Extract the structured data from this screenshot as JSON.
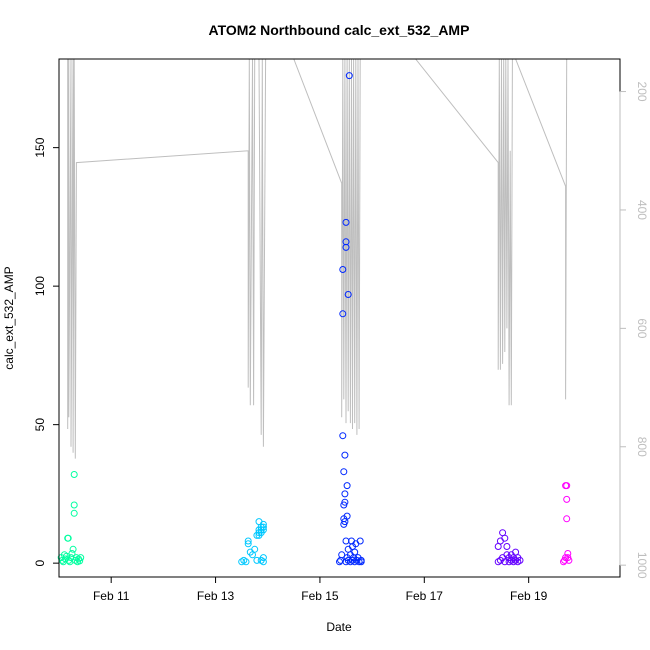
{
  "chart_data": {
    "type": "scatter",
    "title": "ATOM2 Northbound calc_ext_532_AMP",
    "xlabel": "Date",
    "ylabel": "calc_ext_532_AMP",
    "x_range": [
      "2024-02-10T00:00",
      "2024-02-20T18:00"
    ],
    "ylim": [
      -5,
      182
    ],
    "x_ticks": [
      {
        "label": "Feb 11",
        "x": "2024-02-11"
      },
      {
        "label": "Feb 13",
        "x": "2024-02-13"
      },
      {
        "label": "Feb 15",
        "x": "2024-02-15"
      },
      {
        "label": "Feb 17",
        "x": "2024-02-17"
      },
      {
        "label": "Feb 19",
        "x": "2024-02-19"
      }
    ],
    "y_ticks": [
      0,
      50,
      100,
      150
    ],
    "secondary_axis": {
      "side": "right",
      "reversed": true,
      "range": [
        145,
        1020
      ],
      "ticks": [
        200,
        400,
        600,
        800,
        1000
      ],
      "color": "#bebebe"
    },
    "grid": false,
    "point_shape": "open-circle",
    "series": [
      {
        "color": "#00FFA0",
        "points": [
          [
            "2024-02-10T01:00",
            2
          ],
          [
            "2024-02-10T01:30",
            1
          ],
          [
            "2024-02-10T02:00",
            0.5
          ],
          [
            "2024-02-10T02:30",
            3
          ],
          [
            "2024-02-10T03:00",
            1.5
          ],
          [
            "2024-02-10T03:30",
            2.5
          ],
          [
            "2024-02-10T04:00",
            9
          ],
          [
            "2024-02-10T04:15",
            9
          ],
          [
            "2024-02-10T04:30",
            1
          ],
          [
            "2024-02-10T05:00",
            0.5
          ],
          [
            "2024-02-10T05:30",
            2
          ],
          [
            "2024-02-10T06:00",
            3.5
          ],
          [
            "2024-02-10T06:30",
            5
          ],
          [
            "2024-02-10T07:00",
            32
          ],
          [
            "2024-02-10T07:00",
            21
          ],
          [
            "2024-02-10T07:00",
            18
          ],
          [
            "2024-02-10T07:30",
            1
          ],
          [
            "2024-02-10T08:00",
            2
          ],
          [
            "2024-02-10T08:30",
            0.5
          ],
          [
            "2024-02-10T09:00",
            1.5
          ],
          [
            "2024-02-10T09:30",
            0.8
          ],
          [
            "2024-02-10T10:00",
            2
          ]
        ]
      },
      {
        "color": "#00C8FF",
        "points": [
          [
            "2024-02-13T12:00",
            0.5
          ],
          [
            "2024-02-13T13:00",
            1
          ],
          [
            "2024-02-13T14:00",
            0.5
          ],
          [
            "2024-02-13T15:00",
            7
          ],
          [
            "2024-02-13T15:00",
            8
          ],
          [
            "2024-02-13T16:00",
            4
          ],
          [
            "2024-02-13T17:00",
            3
          ],
          [
            "2024-02-13T18:00",
            5
          ],
          [
            "2024-02-13T19:00",
            1
          ],
          [
            "2024-02-13T19:00",
            10
          ],
          [
            "2024-02-13T20:00",
            15
          ],
          [
            "2024-02-13T20:00",
            12
          ],
          [
            "2024-02-13T20:00",
            11
          ],
          [
            "2024-02-13T20:00",
            10
          ],
          [
            "2024-02-13T21:00",
            13
          ],
          [
            "2024-02-13T21:00",
            12
          ],
          [
            "2024-02-13T21:00",
            11
          ],
          [
            "2024-02-13T21:00",
            1
          ],
          [
            "2024-02-13T22:00",
            14
          ],
          [
            "2024-02-13T22:00",
            13
          ],
          [
            "2024-02-13T22:00",
            12
          ],
          [
            "2024-02-13T22:00",
            0.5
          ],
          [
            "2024-02-13T22:00",
            2
          ]
        ]
      },
      {
        "color": "#0028FF",
        "points": [
          [
            "2024-02-15T09:00",
            0.5
          ],
          [
            "2024-02-15T09:30",
            1
          ],
          [
            "2024-02-15T10:00",
            3
          ],
          [
            "2024-02-15T10:30",
            46
          ],
          [
            "2024-02-15T11:00",
            33
          ],
          [
            "2024-02-15T11:00",
            21
          ],
          [
            "2024-02-15T11:00",
            16
          ],
          [
            "2024-02-15T11:00",
            14
          ],
          [
            "2024-02-15T11:30",
            39
          ],
          [
            "2024-02-15T11:30",
            25
          ],
          [
            "2024-02-15T11:30",
            22
          ],
          [
            "2024-02-15T11:30",
            15
          ],
          [
            "2024-02-15T12:00",
            123
          ],
          [
            "2024-02-15T12:00",
            116
          ],
          [
            "2024-02-15T12:00",
            114
          ],
          [
            "2024-02-15T12:00",
            8
          ],
          [
            "2024-02-15T12:00",
            0.5
          ],
          [
            "2024-02-15T12:30",
            28
          ],
          [
            "2024-02-15T12:30",
            17
          ],
          [
            "2024-02-15T12:30",
            2
          ],
          [
            "2024-02-15T13:00",
            97
          ],
          [
            "2024-02-15T13:00",
            5
          ],
          [
            "2024-02-15T13:00",
            1
          ],
          [
            "2024-02-15T10:30",
            106
          ],
          [
            "2024-02-15T10:30",
            90
          ],
          [
            "2024-02-15T13:30",
            176
          ],
          [
            "2024-02-15T14:00",
            3
          ],
          [
            "2024-02-15T14:00",
            0.5
          ],
          [
            "2024-02-15T14:30",
            8
          ],
          [
            "2024-02-15T15:00",
            6
          ],
          [
            "2024-02-15T15:00",
            1
          ],
          [
            "2024-02-15T15:30",
            2
          ],
          [
            "2024-02-15T16:00",
            4
          ],
          [
            "2024-02-15T16:00",
            0.5
          ],
          [
            "2024-02-15T16:30",
            7
          ],
          [
            "2024-02-15T17:00",
            1
          ],
          [
            "2024-02-15T17:30",
            2
          ],
          [
            "2024-02-15T18:00",
            0.5
          ],
          [
            "2024-02-15T18:30",
            8
          ],
          [
            "2024-02-15T19:00",
            1
          ],
          [
            "2024-02-15T19:00",
            0.5
          ]
        ]
      },
      {
        "color": "#6400FF",
        "points": [
          [
            "2024-02-18T10:00",
            6
          ],
          [
            "2024-02-18T10:00",
            0.5
          ],
          [
            "2024-02-18T11:00",
            8
          ],
          [
            "2024-02-18T11:00",
            1
          ],
          [
            "2024-02-18T12:00",
            11
          ],
          [
            "2024-02-18T12:00",
            2
          ],
          [
            "2024-02-18T13:00",
            9
          ],
          [
            "2024-02-18T13:00",
            0.5
          ],
          [
            "2024-02-18T14:00",
            6
          ],
          [
            "2024-02-18T14:00",
            3
          ],
          [
            "2024-02-18T15:00",
            2
          ],
          [
            "2024-02-18T15:00",
            0.5
          ],
          [
            "2024-02-18T16:00",
            1
          ],
          [
            "2024-02-18T16:00",
            3
          ],
          [
            "2024-02-18T17:00",
            2
          ],
          [
            "2024-02-18T17:00",
            0.5
          ],
          [
            "2024-02-18T18:00",
            4
          ],
          [
            "2024-02-18T18:00",
            1
          ],
          [
            "2024-02-18T19:00",
            2
          ],
          [
            "2024-02-18T19:00",
            0.5
          ],
          [
            "2024-02-18T20:00",
            1
          ]
        ]
      },
      {
        "color": "#FF00FF",
        "points": [
          [
            "2024-02-19T16:00",
            0.5
          ],
          [
            "2024-02-19T16:30",
            1
          ],
          [
            "2024-02-19T17:00",
            2
          ],
          [
            "2024-02-19T17:00",
            28
          ],
          [
            "2024-02-19T17:30",
            28
          ],
          [
            "2024-02-19T17:30",
            23
          ],
          [
            "2024-02-19T17:30",
            16
          ],
          [
            "2024-02-19T18:00",
            3.5
          ],
          [
            "2024-02-19T18:00",
            2
          ],
          [
            "2024-02-19T18:30",
            1
          ]
        ]
      }
    ],
    "profile_line": {
      "color": "#bebebe",
      "points": [
        [
          "2024-02-10T04:00",
          145
        ],
        [
          "2024-02-10T04:00",
          770
        ],
        [
          "2024-02-10T04:30",
          145
        ],
        [
          "2024-02-10T04:30",
          750
        ],
        [
          "2024-02-10T05:30",
          145
        ],
        [
          "2024-02-10T05:30",
          800
        ],
        [
          "2024-02-10T06:30",
          145
        ],
        [
          "2024-02-10T06:30",
          810
        ],
        [
          "2024-02-10T07:00",
          145
        ],
        [
          "2024-02-10T07:30",
          820
        ],
        [
          "2024-02-10T08:00",
          320
        ],
        [
          "2024-02-13T15:00",
          300
        ],
        [
          "2024-02-13T15:00",
          700
        ],
        [
          "2024-02-13T15:30",
          145
        ],
        [
          "2024-02-13T16:00",
          730
        ],
        [
          "2024-02-13T17:00",
          145
        ],
        [
          "2024-02-13T17:30",
          730
        ],
        [
          "2024-02-13T18:00",
          145
        ],
        [
          "2024-02-13T20:00",
          145
        ],
        [
          "2024-02-13T21:00",
          780
        ],
        [
          "2024-02-13T21:30",
          145
        ],
        [
          "2024-02-13T22:00",
          800
        ],
        [
          "2024-02-13T23:00",
          145
        ],
        [
          "2024-02-14T12:00",
          145
        ],
        [
          "2024-02-15T10:00",
          355
        ],
        [
          "2024-02-15T10:00",
          750
        ],
        [
          "2024-02-15T10:30",
          145
        ],
        [
          "2024-02-15T11:00",
          720
        ],
        [
          "2024-02-15T11:30",
          145
        ],
        [
          "2024-02-15T12:00",
          760
        ],
        [
          "2024-02-15T12:30",
          145
        ],
        [
          "2024-02-15T13:00",
          740
        ],
        [
          "2024-02-15T13:30",
          145
        ],
        [
          "2024-02-15T14:00",
          760
        ],
        [
          "2024-02-15T14:30",
          145
        ],
        [
          "2024-02-15T15:00",
          770
        ],
        [
          "2024-02-15T15:30",
          145
        ],
        [
          "2024-02-15T16:00",
          760
        ],
        [
          "2024-02-15T16:30",
          145
        ],
        [
          "2024-02-15T17:00",
          780
        ],
        [
          "2024-02-15T17:30",
          145
        ],
        [
          "2024-02-15T18:00",
          770
        ],
        [
          "2024-02-15T18:30",
          145
        ],
        [
          "2024-02-16T20:00",
          145
        ],
        [
          "2024-02-18T10:00",
          320
        ],
        [
          "2024-02-18T10:00",
          670
        ],
        [
          "2024-02-18T10:30",
          145
        ],
        [
          "2024-02-18T11:00",
          670
        ],
        [
          "2024-02-18T11:30",
          145
        ],
        [
          "2024-02-18T12:00",
          660
        ],
        [
          "2024-02-18T12:30",
          145
        ],
        [
          "2024-02-18T13:00",
          640
        ],
        [
          "2024-02-18T13:30",
          145
        ],
        [
          "2024-02-18T14:00",
          600
        ],
        [
          "2024-02-18T14:30",
          145
        ],
        [
          "2024-02-18T15:00",
          730
        ],
        [
          "2024-02-18T15:30",
          300
        ],
        [
          "2024-02-18T16:00",
          730
        ],
        [
          "2024-02-18T16:30",
          145
        ],
        [
          "2024-02-18T18:00",
          145
        ],
        [
          "2024-02-19T17:00",
          360
        ],
        [
          "2024-02-19T17:00",
          720
        ],
        [
          "2024-02-19T17:30",
          145
        ],
        [
          "2024-02-19T17:30",
          145
        ]
      ]
    }
  }
}
